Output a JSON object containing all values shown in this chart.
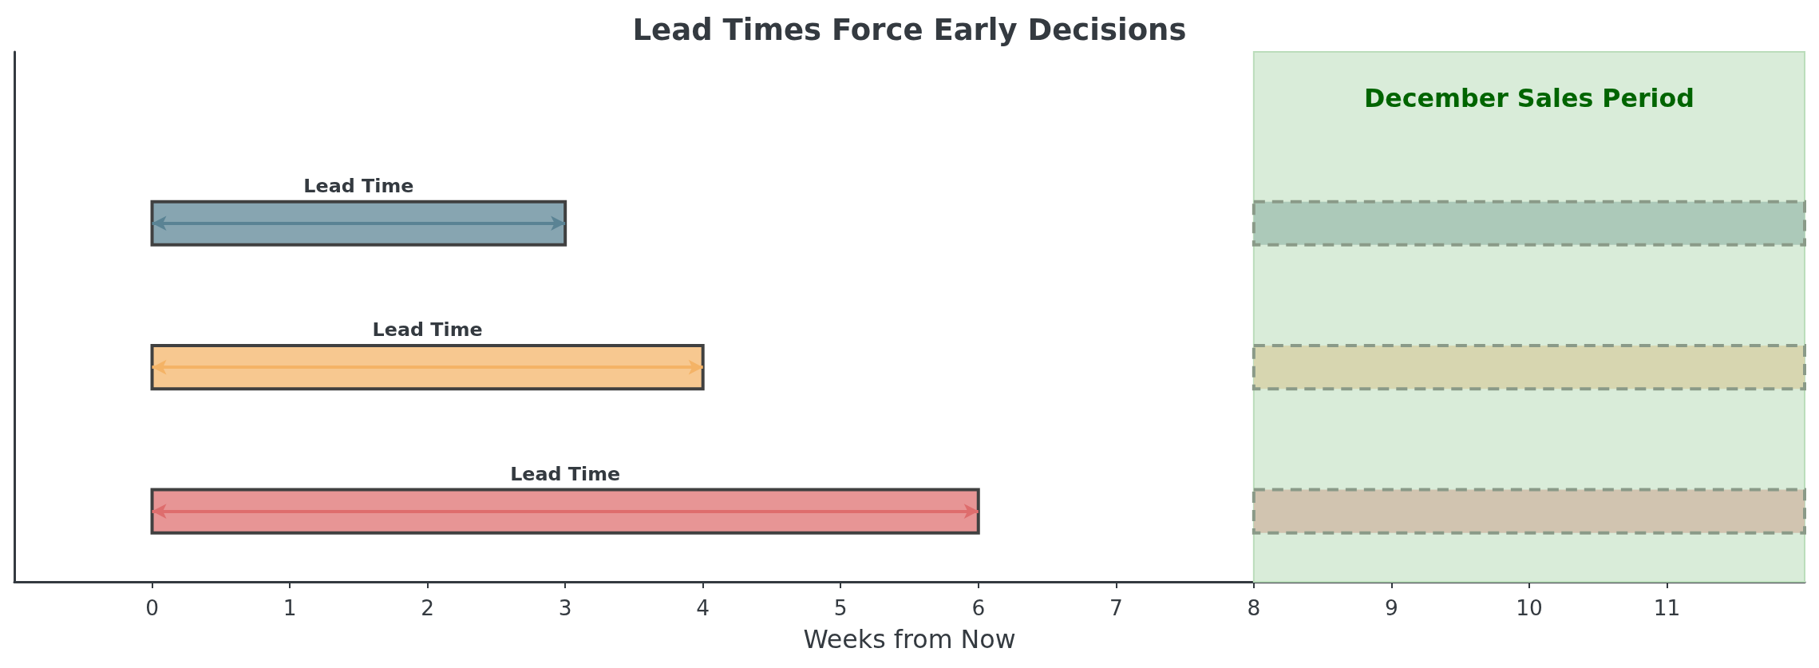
{
  "chart_data": {
    "type": "bar",
    "orientation": "horizontal",
    "title": "Lead Times Force Early Decisions",
    "xlabel": "Weeks from Now",
    "categories": [
      null,
      null,
      null
    ],
    "series": [
      {
        "values": [
          3,
          4,
          6
        ],
        "base": [
          0,
          0,
          0
        ],
        "colors": [
          "#87a5b1",
          "#f7c890",
          "#e79595"
        ],
        "value_labels": [
          "Lead Time",
          "Lead Time",
          "Lead Time"
        ],
        "line_style": "solid"
      },
      {
        "values": [
          4,
          4,
          4
        ],
        "base": [
          8,
          8,
          8
        ],
        "colors": [
          "#acc9b9",
          "#d7d6b0",
          "#d1c4b0"
        ],
        "line_style": "dashed"
      }
    ],
    "xlim": [
      -1,
      12
    ],
    "xticks": [
      0,
      1,
      2,
      3,
      4,
      5,
      6,
      7,
      8,
      9,
      10,
      11
    ],
    "bands": [
      {
        "axis": "x",
        "from": 8,
        "to": 12,
        "label": "December Sales Period",
        "color": "#d9ecd9"
      }
    ],
    "tick_labels": "x"
  }
}
